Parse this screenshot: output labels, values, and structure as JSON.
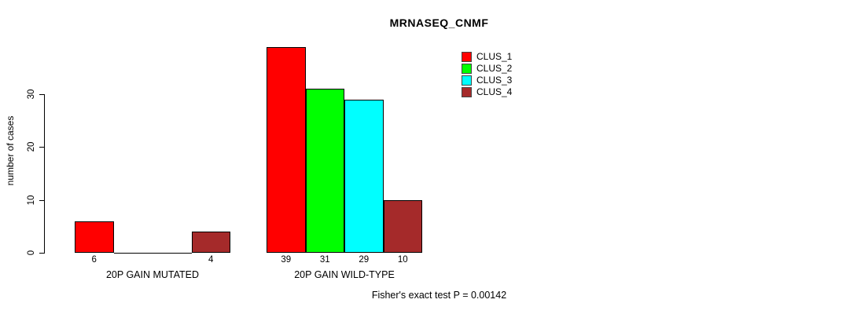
{
  "chart_data": {
    "type": "bar",
    "title": "MRNASEQ_CNMF",
    "xlabel": "",
    "ylabel": "number of cases",
    "yticks": [
      0,
      10,
      20,
      30
    ],
    "ylim": [
      0,
      39
    ],
    "grid": false,
    "legend_position": "top-right",
    "categories": [
      "20P GAIN MUTATED",
      "20P GAIN WILD-TYPE"
    ],
    "series": [
      {
        "name": "CLUS_1",
        "color": "#FF0000",
        "values": [
          6,
          39
        ]
      },
      {
        "name": "CLUS_2",
        "color": "#00FF00",
        "values": [
          0,
          31
        ]
      },
      {
        "name": "CLUS_3",
        "color": "#00FFFF",
        "values": [
          0,
          29
        ]
      },
      {
        "name": "CLUS_4",
        "color": "#A52A2A",
        "values": [
          4,
          10
        ]
      }
    ],
    "bar_value_labels": [
      [
        "6",
        "",
        "",
        "4"
      ],
      [
        "39",
        "31",
        "29",
        "10"
      ]
    ],
    "annotation": "Fisher's exact test P = 0.00142"
  }
}
